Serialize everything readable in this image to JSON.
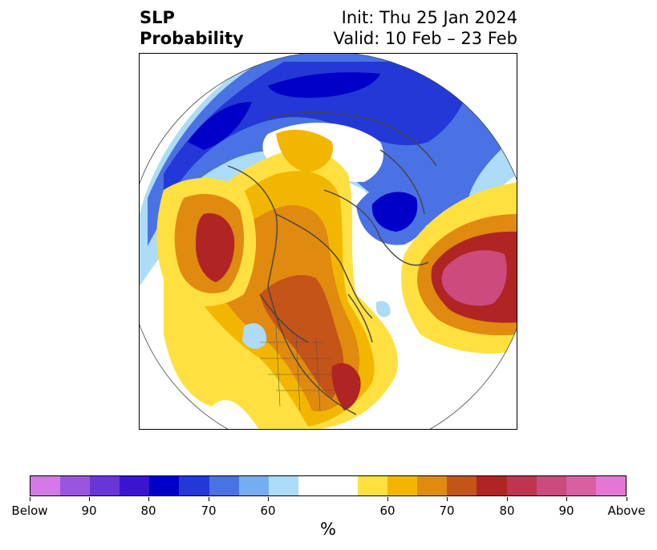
{
  "title": {
    "left_line1": "SLP",
    "left_line2": "Probability",
    "right_line1": "Init: Thu 25 Jan 2024",
    "right_line2": "Valid: 10 Feb – 23 Feb"
  },
  "colorbar": {
    "unit": "%",
    "colors": [
      "#d37ae6",
      "#9a55e0",
      "#6a35d8",
      "#3a14d0",
      "#0000c8",
      "#2338d6",
      "#4a72e4",
      "#75aef0",
      "#acdcf8",
      "#ffffff",
      "#ffe040",
      "#f2b600",
      "#e08a10",
      "#c45418",
      "#b02424",
      "#bf3550",
      "#cc4a7c",
      "#d95ea2",
      "#e676d6"
    ],
    "tick_labels": [
      "Below",
      "90",
      "80",
      "70",
      "60",
      "60",
      "70",
      "80",
      "90",
      "Above"
    ]
  }
}
